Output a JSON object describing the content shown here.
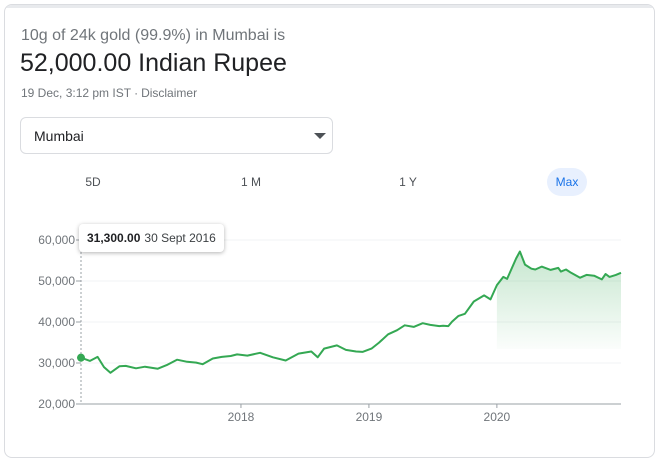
{
  "header": {
    "subtitle": "10g of 24k gold (99.9%) in Mumbai is",
    "value": "52,000.00 Indian Rupee",
    "timestamp": "19 Dec, 3:12 pm IST",
    "separator": "·",
    "disclaimer": "Disclaimer"
  },
  "city_select": {
    "selected": "Mumbai"
  },
  "range_tabs": [
    {
      "label": "5D"
    },
    {
      "label": "1 M"
    },
    {
      "label": "1 Y"
    },
    {
      "label": "Max",
      "active": true
    }
  ],
  "tooltip": {
    "value": "31,300.00",
    "date": "30 Sept 2016"
  },
  "colors": {
    "line": "#34a853",
    "fill_top": "#34a853",
    "accent": "#1a73e8",
    "grid": "#f1f3f4"
  },
  "chart_data": {
    "type": "area",
    "title": "",
    "xlabel": "",
    "ylabel": "",
    "ylim": [
      20000,
      60000
    ],
    "y_ticks": [
      20000,
      30000,
      40000,
      50000,
      60000
    ],
    "y_tick_labels": [
      "20,000",
      "30,000",
      "40,000",
      "50,000",
      "60,000"
    ],
    "xlim": [
      2016.75,
      2020.97
    ],
    "x_ticks": [
      2018,
      2019,
      2020
    ],
    "x_tick_labels": [
      "2018",
      "2019",
      "2020"
    ],
    "grid": true,
    "series": [
      {
        "highlight_point": [
          2016.75,
          31300
        ],
        "x": [
          2016.75,
          2016.82,
          2016.88,
          2016.93,
          2016.98,
          2017.05,
          2017.1,
          2017.18,
          2017.25,
          2017.35,
          2017.42,
          2017.5,
          2017.58,
          2017.65,
          2017.7,
          2017.78,
          2017.85,
          2017.92,
          2017.97,
          2018.05,
          2018.15,
          2018.25,
          2018.35,
          2018.45,
          2018.55,
          2018.6,
          2018.65,
          2018.75,
          2018.82,
          2018.9,
          2018.95,
          2019.02,
          2019.08,
          2019.15,
          2019.22,
          2019.28,
          2019.35,
          2019.42,
          2019.48,
          2019.55,
          2019.58,
          2019.62,
          2019.65,
          2019.7,
          2019.75,
          2019.82,
          2019.9,
          2019.95,
          2020.0,
          2020.05,
          2020.08,
          2020.15,
          2020.18,
          2020.22,
          2020.27,
          2020.3,
          2020.35,
          2020.42,
          2020.48,
          2020.5,
          2020.54,
          2020.58,
          2020.65,
          2020.7,
          2020.76,
          2020.82,
          2020.85,
          2020.88,
          2020.93,
          2020.97
        ],
        "y": [
          31300,
          30500,
          31500,
          29000,
          27600,
          29200,
          29300,
          28700,
          29100,
          28600,
          29500,
          30800,
          30300,
          30100,
          29700,
          31100,
          31500,
          31700,
          32100,
          31800,
          32500,
          31400,
          30600,
          32300,
          32800,
          31400,
          33500,
          34300,
          33200,
          32800,
          32700,
          33500,
          35000,
          37000,
          38000,
          39200,
          38800,
          39700,
          39300,
          39000,
          39100,
          39000,
          40100,
          41500,
          42000,
          45000,
          46500,
          45500,
          49000,
          51000,
          50500,
          55500,
          57200,
          54000,
          53000,
          52800,
          53500,
          52700,
          53200,
          52300,
          52800,
          52000,
          50800,
          51500,
          51300,
          50400,
          51700,
          51000,
          51500,
          52000
        ]
      }
    ]
  }
}
